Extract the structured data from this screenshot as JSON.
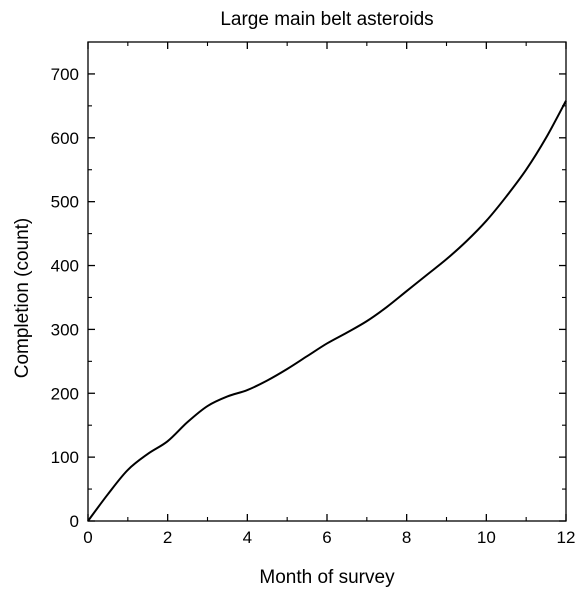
{
  "chart_data": {
    "type": "line",
    "title": "Large main belt asteroids",
    "xlabel": "Month of survey",
    "ylabel": "Completion (count)",
    "xlim": [
      0,
      12
    ],
    "ylim": [
      0,
      750
    ],
    "x_ticks": [
      "0",
      "2",
      "4",
      "6",
      "8",
      "10",
      "12"
    ],
    "y_ticks": [
      "0",
      "100",
      "200",
      "300",
      "400",
      "500",
      "600",
      "700"
    ],
    "grid": false,
    "legend": "none",
    "series": [
      {
        "x": [
          0,
          0.5,
          1,
          1.5,
          2,
          2.5,
          3,
          3.5,
          4,
          4.5,
          5,
          5.5,
          6,
          6.5,
          7,
          7.5,
          8,
          8.5,
          9,
          9.5,
          10,
          10.5,
          11,
          11.5,
          12
        ],
        "values": [
          0,
          42,
          80,
          105,
          125,
          155,
          180,
          195,
          205,
          220,
          238,
          258,
          278,
          295,
          313,
          335,
          360,
          385,
          410,
          438,
          470,
          508,
          550,
          600,
          658
        ]
      }
    ],
    "line_color": "#000000"
  }
}
